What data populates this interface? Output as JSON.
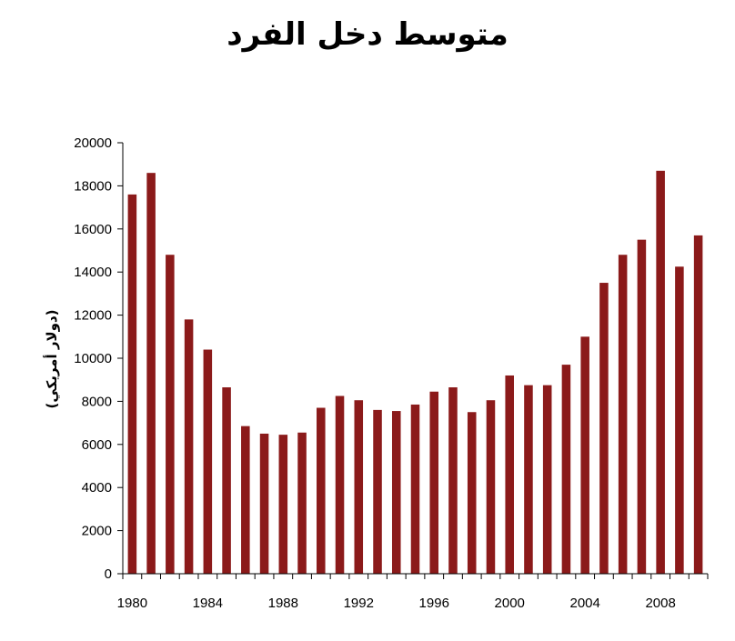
{
  "chart_data": {
    "type": "bar",
    "title": "متوسط دخل الفرد",
    "xlabel": "",
    "ylabel": "(دولار أمريكي)",
    "x": [
      1980,
      1981,
      1982,
      1983,
      1984,
      1985,
      1986,
      1987,
      1988,
      1989,
      1990,
      1991,
      1992,
      1993,
      1994,
      1995,
      1996,
      1997,
      1998,
      1999,
      2000,
      2001,
      2002,
      2003,
      2004,
      2005,
      2006,
      2007,
      2008,
      2009,
      2010
    ],
    "values": [
      17600,
      18600,
      14800,
      11800,
      10400,
      8650,
      6850,
      6500,
      6450,
      6550,
      7700,
      8250,
      8050,
      7600,
      7550,
      7850,
      8450,
      8650,
      7500,
      8050,
      9200,
      8750,
      8750,
      9700,
      11000,
      13500,
      14800,
      15500,
      18700,
      14250,
      15700
    ],
    "x_tick_labels": [
      "1980",
      "1984",
      "1988",
      "1992",
      "1996",
      "2000",
      "2004",
      "2008"
    ],
    "y_tick_labels": [
      "0",
      "2000",
      "4000",
      "6000",
      "8000",
      "10000",
      "12000",
      "14000",
      "16000",
      "18000",
      "20000"
    ],
    "ylim": [
      0,
      20000
    ],
    "grid": false,
    "legend": "none",
    "bar_color": "#8B1A1A"
  }
}
